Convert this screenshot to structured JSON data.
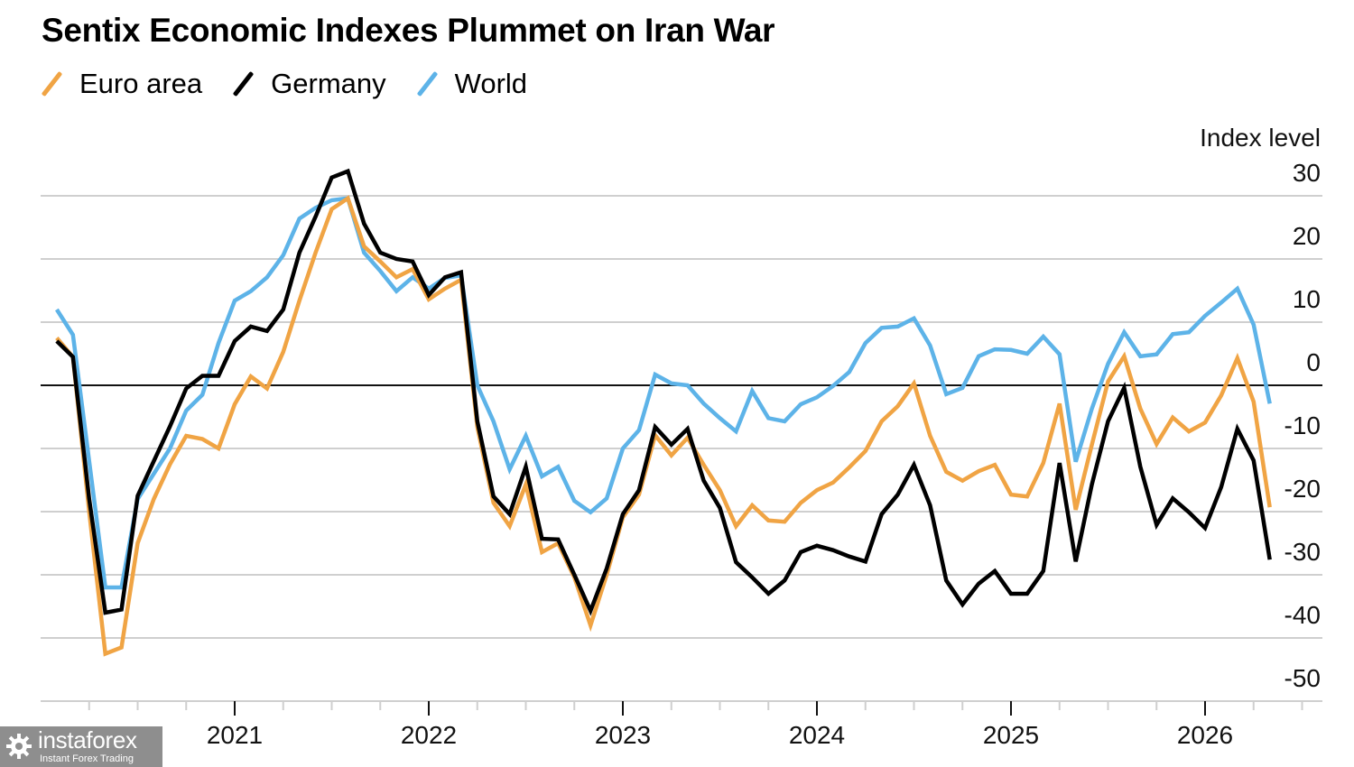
{
  "chart_data": {
    "type": "line",
    "title": "Sentix Economic Indexes Plummet on Iran War",
    "ylabel": "Index level",
    "xlabel": "",
    "ylim": [
      -50,
      30
    ],
    "yticks": [
      30,
      20,
      10,
      0,
      -10,
      -20,
      -30,
      -40,
      -50
    ],
    "xticks": [
      "2021",
      "2022",
      "2023",
      "2024",
      "2025",
      "2026"
    ],
    "x_range": [
      "2020-01",
      "2026-08"
    ],
    "grid": true,
    "legend_position": "top-left",
    "x": [
      "2020-02",
      "2020-03",
      "2020-04",
      "2020-05",
      "2020-06",
      "2020-07",
      "2020-08",
      "2020-09",
      "2020-10",
      "2020-11",
      "2020-12",
      "2021-01",
      "2021-02",
      "2021-03",
      "2021-04",
      "2021-05",
      "2021-06",
      "2021-07",
      "2021-08",
      "2021-09",
      "2021-10",
      "2021-11",
      "2021-12",
      "2022-01",
      "2022-02",
      "2022-03",
      "2022-04",
      "2022-05",
      "2022-06",
      "2022-07",
      "2022-08",
      "2022-09",
      "2022-10",
      "2022-11",
      "2022-12",
      "2023-01",
      "2023-02",
      "2023-03",
      "2023-04",
      "2023-05",
      "2023-06",
      "2023-07",
      "2023-08",
      "2023-09",
      "2023-10",
      "2023-11",
      "2023-12",
      "2024-01",
      "2024-02",
      "2024-03",
      "2024-04",
      "2024-05",
      "2024-06",
      "2024-07",
      "2024-08",
      "2024-09",
      "2024-10",
      "2024-11",
      "2024-12",
      "2025-01",
      "2025-02",
      "2025-03",
      "2025-04",
      "2025-05",
      "2025-06",
      "2025-07",
      "2025-08",
      "2025-09",
      "2025-10",
      "2025-11",
      "2025-12",
      "2026-01",
      "2026-02",
      "2026-03",
      "2026-04",
      "2026-05"
    ],
    "series": [
      {
        "name": "Euro area",
        "color": "#f0a444",
        "values": [
          7.5,
          4.5,
          -20,
          -42.5,
          -41.5,
          -25,
          -18,
          -12.5,
          -8,
          -8.5,
          -10,
          -3,
          1.4,
          -0.5,
          5.3,
          13.4,
          21,
          27.9,
          29.6,
          22,
          19.6,
          17.1,
          18.4,
          13.6,
          15.3,
          16.7,
          -6.6,
          -18.6,
          -22.3,
          -15.7,
          -26.4,
          -25,
          -30.4,
          -38,
          -30,
          -20.9,
          -17.3,
          -7.9,
          -11.1,
          -8.3,
          -12.6,
          -16.6,
          -22.3,
          -19,
          -21.4,
          -21.6,
          -18.6,
          -16.6,
          -15.4,
          -13,
          -10.4,
          -5.7,
          -3.3,
          0.3,
          -8,
          -13.7,
          -15.1,
          -13.6,
          -12.6,
          -17.3,
          -17.6,
          -12.3,
          -2.9,
          -19.7,
          -9.4,
          0.6,
          4.6,
          -3.7,
          -9.3,
          -5.1,
          -7.3,
          -5.9,
          -1.6,
          4.3,
          -2.6,
          -19.3
        ]
      },
      {
        "name": "Germany",
        "color": "#000000",
        "values": [
          7,
          4.5,
          -18,
          -36,
          -35.5,
          -17.5,
          -12,
          -6.5,
          -0.5,
          1.5,
          1.5,
          7,
          9.3,
          8.6,
          12,
          21,
          26.7,
          32.9,
          33.9,
          25.6,
          21,
          20,
          19.6,
          14.3,
          17.1,
          17.9,
          -5.7,
          -17.6,
          -20.4,
          -12.9,
          -24.3,
          -24.4,
          -30,
          -35.7,
          -29,
          -20.4,
          -16.6,
          -6.6,
          -9.4,
          -6.9,
          -15.1,
          -19.4,
          -28,
          -30.4,
          -33,
          -30.9,
          -26.4,
          -25.4,
          -26.1,
          -27.1,
          -27.9,
          -20.4,
          -17.3,
          -12.6,
          -19,
          -30.9,
          -34.7,
          -31.4,
          -29.4,
          -33,
          -33,
          -29.4,
          -12.3,
          -27.9,
          -15.7,
          -5.7,
          -0.4,
          -12.9,
          -22.1,
          -17.9,
          -20.1,
          -22.6,
          -16.1,
          -6.9,
          -11.9,
          -27.6
        ]
      },
      {
        "name": "World",
        "color": "#5db3e8",
        "values": [
          12,
          8,
          -12,
          -32,
          -32,
          -18,
          -14,
          -10,
          -4,
          -1.5,
          6.7,
          13.4,
          14.9,
          17.1,
          20.6,
          26.4,
          28.1,
          29.3,
          29.6,
          21,
          18.1,
          14.9,
          17.1,
          15.3,
          17,
          17.4,
          0,
          -5.7,
          -13.3,
          -8,
          -14.4,
          -12.9,
          -18.3,
          -20.1,
          -17.9,
          -10,
          -7.1,
          1.7,
          0.3,
          0,
          -2.9,
          -5.2,
          -7.3,
          -0.9,
          -5.2,
          -5.7,
          -3,
          -1.9,
          -0.1,
          2.1,
          6.7,
          9.1,
          9.3,
          10.6,
          6.3,
          -1.4,
          -0.4,
          4.6,
          5.7,
          5.6,
          5,
          7.7,
          4.9,
          -12.1,
          -3.7,
          3.4,
          8.4,
          4.6,
          4.9,
          8.1,
          8.4,
          11,
          13.1,
          15.3,
          9.6,
          -2.9
        ]
      }
    ]
  },
  "legend": [
    {
      "label": "Euro area",
      "color": "#f0a444"
    },
    {
      "label": "Germany",
      "color": "#000000"
    },
    {
      "label": "World",
      "color": "#5db3e8"
    }
  ],
  "watermark": {
    "brand": "instaforex",
    "tagline": "Instant Forex Trading"
  }
}
